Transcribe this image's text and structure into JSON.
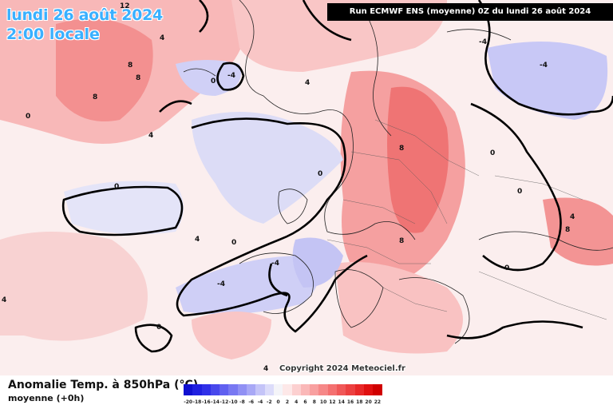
{
  "header": {
    "date": "lundi 26 août 2024",
    "local_time": "2:00 locale",
    "run_info": "Run ECMWF ENS (moyenne) 0Z du lundi 26 août 2024"
  },
  "copyright": "Copyright 2024 Meteociel.fr",
  "legend": {
    "title": "Anomalie Temp. à 850hPa (°C)",
    "subtitle": "moyenne   (+0h)",
    "scale_labels": [
      "-20",
      "-18",
      "-16",
      "-14",
      "-12",
      "-10",
      "-8",
      "-6",
      "-4",
      "-2",
      "0",
      "2",
      "4",
      "6",
      "8",
      "10",
      "12",
      "14",
      "16",
      "18",
      "20",
      "22"
    ],
    "scale_colors": [
      "#1010d0",
      "#2020e0",
      "#3030e8",
      "#4848ec",
      "#6060f0",
      "#7878f2",
      "#9090f4",
      "#a8a8f6",
      "#c4c4f8",
      "#dcdcfa",
      "#f4f4f8",
      "#fde8e8",
      "#fcd0d0",
      "#fab8b8",
      "#f8a0a0",
      "#f68888",
      "#f47070",
      "#f05858",
      "#ec4040",
      "#e82828",
      "#e01010",
      "#d00000"
    ]
  },
  "contour_labels": [
    {
      "text": "12"
    },
    {
      "text": "8"
    },
    {
      "text": "8"
    },
    {
      "text": "8"
    },
    {
      "text": "4"
    },
    {
      "text": "4"
    },
    {
      "text": "4"
    },
    {
      "text": "0"
    },
    {
      "text": "0"
    },
    {
      "text": "0"
    },
    {
      "text": "0"
    },
    {
      "text": "-4"
    },
    {
      "text": "-4"
    },
    {
      "text": "-4"
    },
    {
      "text": "-4"
    },
    {
      "text": "4"
    },
    {
      "text": "8"
    },
    {
      "text": "8"
    },
    {
      "text": "0"
    },
    {
      "text": "0"
    },
    {
      "text": "4"
    },
    {
      "text": "0"
    },
    {
      "text": "-4"
    },
    {
      "text": "0"
    },
    {
      "text": "4"
    },
    {
      "text": "4"
    },
    {
      "text": "0"
    },
    {
      "text": "8"
    }
  ]
}
